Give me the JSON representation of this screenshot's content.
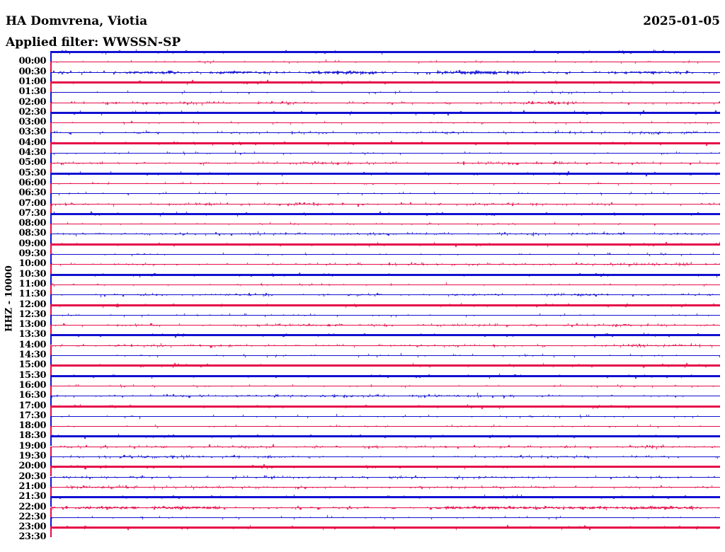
{
  "header": {
    "title": "HA Domvrena, Viotia",
    "date": "2025-01-05",
    "filter_label": "Applied filter: WWSSN-SP"
  },
  "axis": {
    "y_label": "HHZ - 10000",
    "time_label_start": "00:00",
    "time_label_end": "23:30"
  },
  "colors": {
    "red": "#e60c48",
    "blue": "#1010d2",
    "text": "#000000",
    "background": "#ffffff"
  },
  "chart_data": {
    "type": "line",
    "subtype": "helicorder",
    "title": "HA Domvrena, Viotia",
    "date": "2025-01-05",
    "filter": "WWSSN-SP",
    "channel_scale_label": "HHZ - 10000",
    "row_interval_minutes": 30,
    "rows_total": 49,
    "legend": "amplitude levels: saturated = full-scale thick trace, high = dense noise bursts, medium = frequent small spikes, low = sparse small spikes, missing = no data drawn",
    "rows": [
      {
        "time": "",
        "color": "blue",
        "level": "saturated"
      },
      {
        "time": "00:00",
        "color": "red",
        "level": "low"
      },
      {
        "time": "00:30",
        "color": "blue",
        "level": "high"
      },
      {
        "time": "01:00",
        "color": "red",
        "level": "saturated"
      },
      {
        "time": "01:30",
        "color": "blue",
        "level": "low"
      },
      {
        "time": "02:00",
        "color": "red",
        "level": "medium"
      },
      {
        "time": "02:30",
        "color": "blue",
        "level": "saturated"
      },
      {
        "time": "03:00",
        "color": "red",
        "level": "low"
      },
      {
        "time": "03:30",
        "color": "blue",
        "level": "medium"
      },
      {
        "time": "04:00",
        "color": "red",
        "level": "saturated"
      },
      {
        "time": "04:30",
        "color": "blue",
        "level": "low"
      },
      {
        "time": "05:00",
        "color": "red",
        "level": "medium"
      },
      {
        "time": "05:30",
        "color": "blue",
        "level": "saturated"
      },
      {
        "time": "06:00",
        "color": "red",
        "level": "low"
      },
      {
        "time": "06:30",
        "color": "blue",
        "level": "low"
      },
      {
        "time": "07:00",
        "color": "red",
        "level": "medium"
      },
      {
        "time": "07:30",
        "color": "blue",
        "level": "saturated"
      },
      {
        "time": "08:00",
        "color": "red",
        "level": "low"
      },
      {
        "time": "08:30",
        "color": "blue",
        "level": "medium"
      },
      {
        "time": "09:00",
        "color": "red",
        "level": "saturated"
      },
      {
        "time": "09:30",
        "color": "blue",
        "level": "low"
      },
      {
        "time": "10:00",
        "color": "red",
        "level": "medium"
      },
      {
        "time": "10:30",
        "color": "blue",
        "level": "saturated"
      },
      {
        "time": "11:00",
        "color": "red",
        "level": "low"
      },
      {
        "time": "11:30",
        "color": "blue",
        "level": "medium"
      },
      {
        "time": "12:00",
        "color": "red",
        "level": "saturated"
      },
      {
        "time": "12:30",
        "color": "blue",
        "level": "low"
      },
      {
        "time": "13:00",
        "color": "red",
        "level": "medium"
      },
      {
        "time": "13:30",
        "color": "blue",
        "level": "saturated"
      },
      {
        "time": "14:00",
        "color": "red",
        "level": "medium"
      },
      {
        "time": "14:30",
        "color": "blue",
        "level": "low"
      },
      {
        "time": "15:00",
        "color": "red",
        "level": "saturated"
      },
      {
        "time": "15:30",
        "color": "blue",
        "level": "saturated"
      },
      {
        "time": "16:00",
        "color": "red",
        "level": "low"
      },
      {
        "time": "16:30",
        "color": "blue",
        "level": "medium"
      },
      {
        "time": "17:00",
        "color": "red",
        "level": "saturated"
      },
      {
        "time": "17:30",
        "color": "blue",
        "level": "low"
      },
      {
        "time": "18:00",
        "color": "red",
        "level": "low"
      },
      {
        "time": "18:30",
        "color": "blue",
        "level": "saturated"
      },
      {
        "time": "19:00",
        "color": "red",
        "level": "medium"
      },
      {
        "time": "19:30",
        "color": "blue",
        "level": "medium"
      },
      {
        "time": "20:00",
        "color": "red",
        "level": "saturated"
      },
      {
        "time": "20:30",
        "color": "blue",
        "level": "medium"
      },
      {
        "time": "21:00",
        "color": "red",
        "level": "medium"
      },
      {
        "time": "21:30",
        "color": "blue",
        "level": "saturated"
      },
      {
        "time": "22:00",
        "color": "red",
        "level": "high"
      },
      {
        "time": "22:30",
        "color": "blue",
        "level": "low"
      },
      {
        "time": "23:00",
        "color": "red",
        "level": "saturated"
      },
      {
        "time": "23:30",
        "color": "blue",
        "level": "missing"
      }
    ]
  }
}
